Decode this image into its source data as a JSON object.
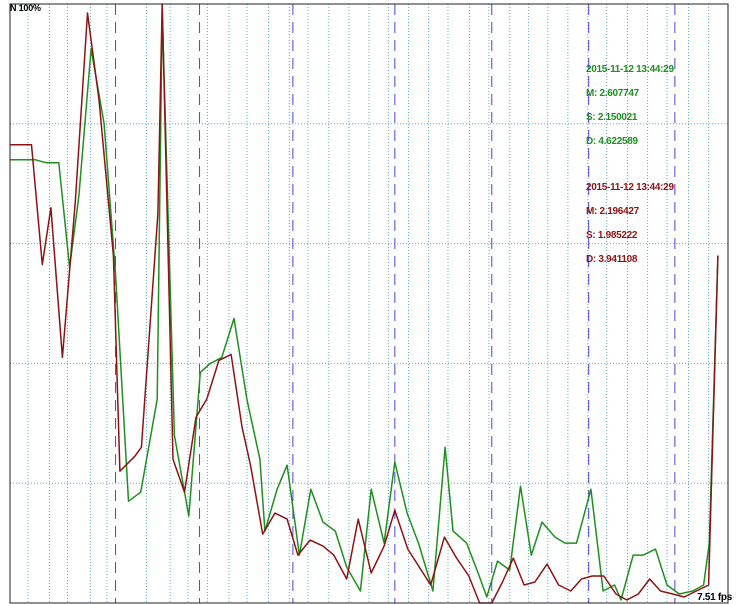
{
  "corner_label": "N 100%",
  "fps_label": "7.51 fps",
  "colors": {
    "green": "#1f8f1f",
    "red": "#8b1414",
    "grid_dotted": "#5aa8e0",
    "grid_dashed": "#4b46cc",
    "border": "#222222"
  },
  "chart_data": {
    "type": "line",
    "ylim": [
      0,
      100
    ],
    "xlim": [
      0,
      100
    ],
    "grid": true,
    "series": [
      {
        "color_key": "green",
        "stats": {
          "timestamp": "2015-11-12 13:44:29",
          "m": "M: 2.607747",
          "s": "S: 2.150021",
          "d": "D: 4.622589"
        },
        "points": [
          [
            0,
            74
          ],
          [
            3.5,
            74
          ],
          [
            5,
            73.5
          ],
          [
            6.8,
            73.5
          ],
          [
            8.3,
            56
          ],
          [
            9.6,
            68
          ],
          [
            11.3,
            92.5
          ],
          [
            13.1,
            80
          ],
          [
            14.7,
            55
          ],
          [
            16.5,
            17
          ],
          [
            18.2,
            18.5
          ],
          [
            20.5,
            34
          ],
          [
            21.2,
            99
          ],
          [
            22.9,
            28
          ],
          [
            24.9,
            14.5
          ],
          [
            26.5,
            38.5
          ],
          [
            27.9,
            40
          ],
          [
            29.5,
            41
          ],
          [
            31.2,
            47.5
          ],
          [
            33,
            34
          ],
          [
            34.8,
            24
          ],
          [
            35.5,
            12
          ],
          [
            37.2,
            19
          ],
          [
            38.6,
            23
          ],
          [
            40.3,
            8
          ],
          [
            41.9,
            19
          ],
          [
            43.6,
            13.5
          ],
          [
            45.3,
            12
          ],
          [
            46.9,
            6
          ],
          [
            48.8,
            2
          ],
          [
            50.3,
            19
          ],
          [
            52.1,
            10
          ],
          [
            53.6,
            23.5
          ],
          [
            55.3,
            15
          ],
          [
            56.9,
            10
          ],
          [
            58.9,
            2
          ],
          [
            60.6,
            26
          ],
          [
            61.7,
            12
          ],
          [
            63.6,
            10
          ],
          [
            65.2,
            5
          ],
          [
            66.4,
            1
          ],
          [
            67.9,
            7
          ],
          [
            69.6,
            5.5
          ],
          [
            71.1,
            19.5
          ],
          [
            72.6,
            8
          ],
          [
            74.1,
            13.5
          ],
          [
            75.9,
            11
          ],
          [
            77.3,
            10
          ],
          [
            78.9,
            10
          ],
          [
            80.9,
            19
          ],
          [
            82.6,
            2
          ],
          [
            84.2,
            3
          ],
          [
            85.1,
            0.5
          ],
          [
            86.8,
            8
          ],
          [
            88.2,
            8
          ],
          [
            89.9,
            9
          ],
          [
            91.5,
            3
          ],
          [
            93.2,
            1.5
          ],
          [
            95.1,
            2
          ],
          [
            96.6,
            3
          ],
          [
            97.4,
            10
          ],
          [
            98.6,
            58
          ]
        ]
      },
      {
        "color_key": "red",
        "stats": {
          "timestamp": "2015-11-12 13:44:29",
          "m": "M: 2.196427",
          "s": "S: 1.985222",
          "d": "D: 3.941108"
        },
        "points": [
          [
            0,
            76.5
          ],
          [
            3,
            76.5
          ],
          [
            4.5,
            56.5
          ],
          [
            5.7,
            66
          ],
          [
            7.3,
            41
          ],
          [
            9.1,
            67
          ],
          [
            10.8,
            98.5
          ],
          [
            12.4,
            84
          ],
          [
            14.4,
            58
          ],
          [
            15.3,
            22
          ],
          [
            17.4,
            24.5
          ],
          [
            18.3,
            26
          ],
          [
            20.6,
            65
          ],
          [
            21.2,
            100
          ],
          [
            22.7,
            24
          ],
          [
            24.3,
            18.5
          ],
          [
            25.9,
            31
          ],
          [
            27.4,
            34
          ],
          [
            29.1,
            40.5
          ],
          [
            30.8,
            41.5
          ],
          [
            32.3,
            29.5
          ],
          [
            33.5,
            23
          ],
          [
            35.2,
            11.5
          ],
          [
            36.9,
            15
          ],
          [
            38.6,
            14
          ],
          [
            40.1,
            8
          ],
          [
            41.8,
            10.5
          ],
          [
            43.6,
            9.5
          ],
          [
            45.1,
            8
          ],
          [
            46.9,
            4
          ],
          [
            48.5,
            14
          ],
          [
            50.3,
            5
          ],
          [
            52.1,
            9.5
          ],
          [
            53.6,
            15.5
          ],
          [
            55.4,
            9
          ],
          [
            57,
            6
          ],
          [
            58.6,
            3
          ],
          [
            60.5,
            11
          ],
          [
            62.2,
            7.5
          ],
          [
            63.9,
            4.5
          ],
          [
            65.4,
            0
          ],
          [
            67.1,
            0
          ],
          [
            68.6,
            3.5
          ],
          [
            70.1,
            7.5
          ],
          [
            71.6,
            3
          ],
          [
            73.1,
            3.5
          ],
          [
            74.8,
            6.5
          ],
          [
            76.4,
            3
          ],
          [
            78.1,
            2
          ],
          [
            79.6,
            4
          ],
          [
            81.1,
            4.5
          ],
          [
            82.7,
            4.5
          ],
          [
            84.4,
            1.5
          ],
          [
            85.9,
            0.5
          ],
          [
            87.5,
            1.5
          ],
          [
            89.1,
            4
          ],
          [
            90.6,
            2
          ],
          [
            92.3,
            1.5
          ],
          [
            93.9,
            1
          ],
          [
            95.6,
            2
          ],
          [
            97.3,
            3
          ],
          [
            98.6,
            58
          ]
        ]
      }
    ],
    "dotted_vertical_lines": [
      2.5,
      5.5,
      8,
      11.2,
      13.5,
      19,
      22.3,
      24.8,
      27.5,
      30.5,
      33,
      36,
      38.9,
      41.5,
      44.4,
      47.2,
      50,
      52.7,
      55.5,
      58.3,
      61,
      64,
      66.7,
      69.6,
      72.2,
      74.9,
      77.7,
      80.5,
      83.1,
      86,
      88.8,
      91.5,
      94.5,
      97.3
    ],
    "dashed_vertical_lines": [
      14.7,
      26.4,
      39.4,
      53.6,
      67.1,
      80.6,
      92.6
    ],
    "horizontal_lines": [
      20,
      40,
      60,
      80
    ]
  }
}
